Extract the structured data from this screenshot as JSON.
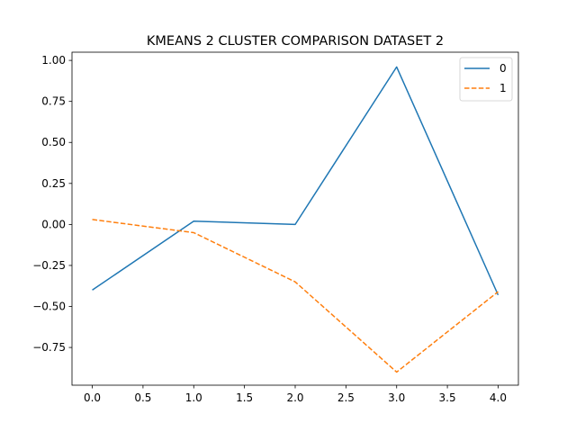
{
  "chart_data": {
    "type": "line",
    "title": "KMEANS 2 CLUSTER COMPARISON DATASET 2",
    "xlabel": "",
    "ylabel": "",
    "x": [
      0,
      1,
      2,
      3,
      4
    ],
    "xlim": [
      -0.2,
      4.2
    ],
    "ylim": [
      -0.98,
      1.05
    ],
    "xticks": [
      0.0,
      0.5,
      1.0,
      1.5,
      2.0,
      2.5,
      3.0,
      3.5,
      4.0
    ],
    "xtick_labels": [
      "0.0",
      "0.5",
      "1.0",
      "1.5",
      "2.0",
      "2.5",
      "3.0",
      "3.5",
      "4.0"
    ],
    "yticks": [
      1.0,
      0.75,
      0.5,
      0.25,
      0.0,
      -0.25,
      -0.5,
      -0.75
    ],
    "ytick_labels": [
      "1.00",
      "0.75",
      "0.50",
      "0.25",
      "0.00",
      "−0.25",
      "−0.50",
      "−0.75"
    ],
    "grid": false,
    "legend": "top-right",
    "series": [
      {
        "name": "0",
        "values": [
          -0.4,
          0.02,
          0.0,
          0.96,
          -0.43
        ],
        "color": "#1f77b4",
        "style": "solid"
      },
      {
        "name": "1",
        "values": [
          0.03,
          -0.05,
          -0.35,
          -0.9,
          -0.41
        ],
        "color": "#ff7f0e",
        "style": "dashed"
      }
    ]
  }
}
